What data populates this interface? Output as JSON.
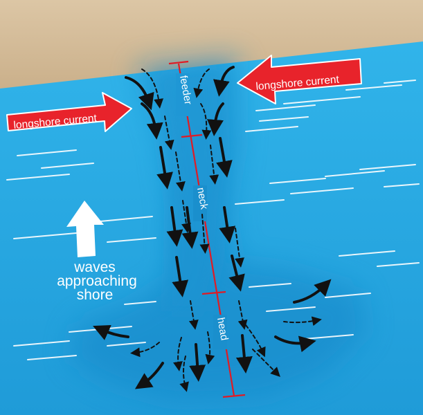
{
  "labels": {
    "longshore_left": "longshore current",
    "longshore_right": "longshore current",
    "waves_line1": "waves",
    "waves_line2": "approaching",
    "waves_line3": "shore",
    "feeder": "feeder",
    "neck": "neck",
    "head": "head"
  },
  "colors": {
    "sand": "#d4bb99",
    "ocean": "#28a8e0",
    "rip_channel": "#1c8fd0",
    "arrow_red": "#e8232b",
    "flow_arrow": "#111111",
    "scale_line": "#e01b24",
    "wave_line": "#ffffff"
  }
}
